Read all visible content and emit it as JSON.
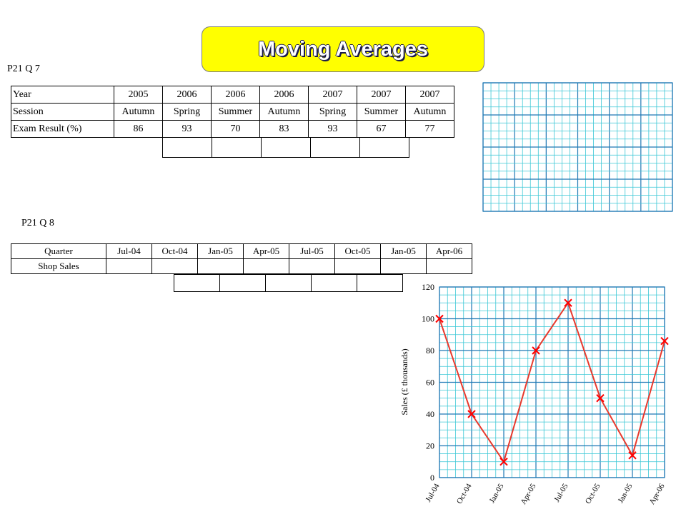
{
  "title": "Moving Averages",
  "q7": {
    "label": "P21 Q 7",
    "rows": [
      [
        "Year",
        "2005",
        "2006",
        "2006",
        "2006",
        "2007",
        "2007",
        "2007"
      ],
      [
        "Session",
        "Autumn",
        "Spring",
        "Summer",
        "Autumn",
        "Spring",
        "Summer",
        "Autumn"
      ],
      [
        "Exam Result (%)",
        "86",
        "93",
        "70",
        "83",
        "93",
        "67",
        "77"
      ]
    ],
    "empty_cells": 5
  },
  "q8": {
    "label": "P21 Q 8",
    "header": [
      "Quarter",
      "Jul-04",
      "Oct-04",
      "Jan-05",
      "Apr-05",
      "Jul-05",
      "Oct-05",
      "Jan-05",
      "Apr-06"
    ],
    "row_label": "Shop Sales",
    "empty_cells": 5
  },
  "chart_data": {
    "type": "line",
    "categories": [
      "Jul-04",
      "Oct-04",
      "Jan-05",
      "Apr-05",
      "Jul-05",
      "Oct-05",
      "Jan-05",
      "Apr-06"
    ],
    "series": [
      {
        "values": [
          100,
          40,
          10,
          80,
          110,
          50,
          14,
          86
        ],
        "color": "#e8392d"
      }
    ],
    "ylabel": "Sales (£ thousands)",
    "xlabel": "",
    "ylim": [
      0,
      120
    ],
    "yticks": [
      0,
      20,
      40,
      60,
      80,
      100,
      120
    ],
    "grid": true,
    "marker": "x",
    "grid_color": "#3cc8d6"
  },
  "blank_grid": {
    "grid_color": "#3cc8d6"
  }
}
